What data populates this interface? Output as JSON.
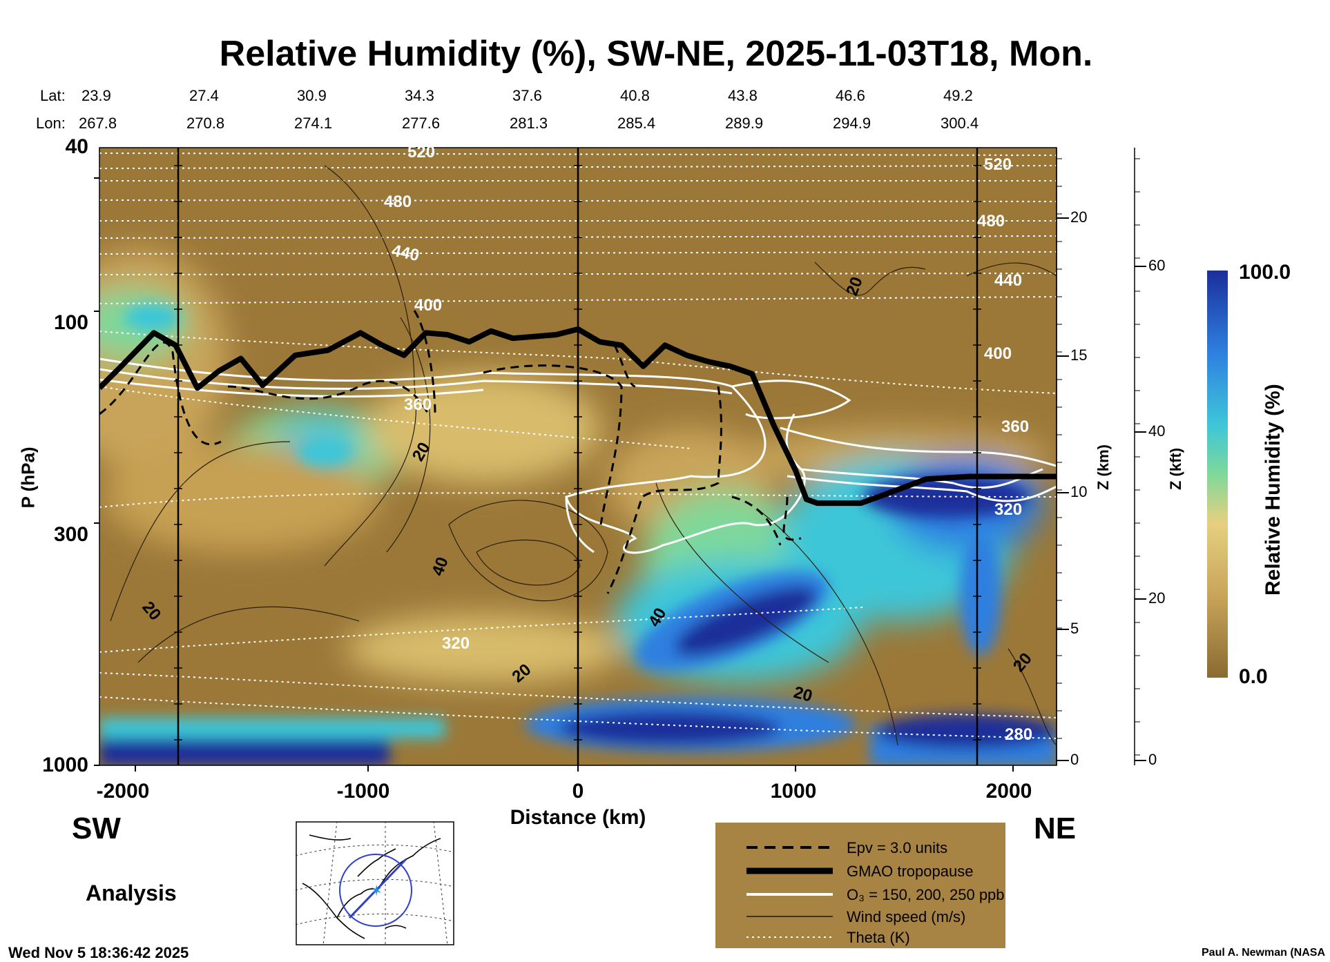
{
  "chart_data": {
    "type": "heatmap",
    "title": "Relative Humidity (%), SW-NE, 2025-11-03T18, Mon.",
    "xlabel": "Distance (km)",
    "ylabel": "P (hPa)",
    "xlim": [
      -2200,
      2200
    ],
    "ylim_pressure": [
      1000,
      40
    ],
    "x_ticks": [
      "-2000",
      "-1000",
      "0",
      "1000",
      "2000"
    ],
    "y_ticks": [
      "40",
      "100",
      "300",
      "1000"
    ],
    "z_km_label": "Z (km)",
    "z_km_ticks": [
      "20",
      "15",
      "10",
      "5",
      "0"
    ],
    "z_kft_label": "Z (kft)",
    "z_kft_ticks": [
      "60",
      "40",
      "20",
      "0"
    ],
    "lat_label": "Lat:",
    "lon_label": "Lon:",
    "lat_values": [
      "23.9",
      "27.4",
      "30.9",
      "34.3",
      "37.6",
      "40.8",
      "43.8",
      "46.6",
      "49.2"
    ],
    "lon_values": [
      "267.8",
      "270.8",
      "274.1",
      "277.6",
      "281.3",
      "285.4",
      "289.9",
      "294.9",
      "300.4"
    ],
    "colorbar": {
      "label": "Relative Humidity (%)",
      "max": "100.0",
      "min": "0.0",
      "colors": [
        "#8a6a32",
        "#c8a45a",
        "#e6d080",
        "#7fd89a",
        "#3ec6d8",
        "#2f7fe0",
        "#1b2f9a"
      ]
    },
    "theta_labels": [
      "520",
      "480",
      "440",
      "400",
      "360",
      "320",
      "280"
    ],
    "wind_labels": [
      "20",
      "40"
    ],
    "direction_left": "SW",
    "direction_right": "NE",
    "legend": [
      {
        "label": "Epv = 3.0 units",
        "style": "dashed-black"
      },
      {
        "label": "GMAO tropopause",
        "style": "thick-black"
      },
      {
        "label": "O₃ = 150, 200, 250 ppb",
        "style": "white"
      },
      {
        "label": "Wind speed (m/s)",
        "style": "thin-black"
      },
      {
        "label": "Theta (K)",
        "style": "dotted-white"
      }
    ],
    "tropopause_pressure": [
      [
        -2200,
        140
      ],
      [
        -2100,
        125
      ],
      [
        -1950,
        105
      ],
      [
        -1850,
        112
      ],
      [
        -1750,
        140
      ],
      [
        -1650,
        128
      ],
      [
        -1550,
        120
      ],
      [
        -1450,
        138
      ],
      [
        -1300,
        118
      ],
      [
        -1150,
        115
      ],
      [
        -1000,
        105
      ],
      [
        -900,
        112
      ],
      [
        -800,
        118
      ],
      [
        -700,
        105
      ],
      [
        -600,
        106
      ],
      [
        -500,
        110
      ],
      [
        -400,
        104
      ],
      [
        -300,
        108
      ],
      [
        -100,
        106
      ],
      [
        0,
        103
      ],
      [
        100,
        110
      ],
      [
        200,
        112
      ],
      [
        300,
        125
      ],
      [
        400,
        112
      ],
      [
        500,
        118
      ],
      [
        600,
        122
      ],
      [
        700,
        125
      ],
      [
        800,
        130
      ],
      [
        900,
        170
      ],
      [
        1000,
        215
      ],
      [
        1050,
        250
      ],
      [
        1100,
        255
      ],
      [
        1300,
        255
      ],
      [
        1400,
        245
      ],
      [
        1600,
        225
      ],
      [
        1800,
        222
      ],
      [
        2200,
        222
      ]
    ]
  },
  "labels": {
    "analysis": "Analysis",
    "timestamp": "Wed Nov  5 18:36:42 2025",
    "credit": "Paul A. Newman (NASA"
  }
}
